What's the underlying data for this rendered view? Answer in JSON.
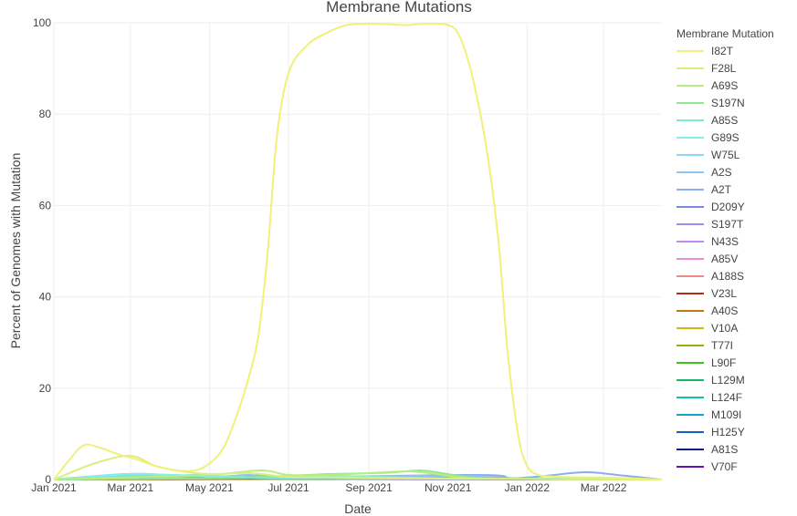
{
  "chart_data": {
    "type": "line",
    "title": "Membrane Mutations",
    "xlabel": "Date",
    "ylabel": "Percent of Genomes with Mutation",
    "xlim": [
      "2021-01-01",
      "2022-04-15"
    ],
    "ylim": [
      0,
      100
    ],
    "x_ticks": [
      "Jan 2021",
      "Mar 2021",
      "May 2021",
      "Jul 2021",
      "Sep 2021",
      "Nov 2021",
      "Jan 2022",
      "Mar 2022"
    ],
    "x_tick_dates": [
      "2021-01-01",
      "2021-03-01",
      "2021-05-01",
      "2021-07-01",
      "2021-09-01",
      "2021-11-01",
      "2022-01-01",
      "2022-03-01"
    ],
    "y_ticks": [
      0,
      20,
      40,
      60,
      80,
      100
    ],
    "grid": true,
    "legend_title": "Membrane Mutation",
    "legend_position": "right",
    "series": [
      {
        "name": "I82T",
        "color": "#f0f07a",
        "points": [
          [
            "2021-01-01",
            0
          ],
          [
            "2021-01-12",
            4
          ],
          [
            "2021-01-24",
            7.5
          ],
          [
            "2021-02-05",
            7
          ],
          [
            "2021-02-20",
            5.5
          ],
          [
            "2021-03-05",
            4.5
          ],
          [
            "2021-03-20",
            3
          ],
          [
            "2021-04-05",
            2
          ],
          [
            "2021-04-20",
            2
          ],
          [
            "2021-05-01",
            3.5
          ],
          [
            "2021-05-12",
            7
          ],
          [
            "2021-05-22",
            14
          ],
          [
            "2021-06-01",
            23
          ],
          [
            "2021-06-08",
            32
          ],
          [
            "2021-06-15",
            50
          ],
          [
            "2021-06-22",
            75
          ],
          [
            "2021-07-01",
            89
          ],
          [
            "2021-07-15",
            95
          ],
          [
            "2021-08-01",
            98
          ],
          [
            "2021-08-15",
            99.5
          ],
          [
            "2021-09-01",
            99.8
          ],
          [
            "2021-09-15",
            99.7
          ],
          [
            "2021-10-01",
            99.5
          ],
          [
            "2021-10-15",
            99.8
          ],
          [
            "2021-11-01",
            99.5
          ],
          [
            "2021-11-10",
            97
          ],
          [
            "2021-11-20",
            88
          ],
          [
            "2021-12-01",
            72
          ],
          [
            "2021-12-10",
            52
          ],
          [
            "2021-12-17",
            28
          ],
          [
            "2021-12-25",
            10
          ],
          [
            "2022-01-01",
            3
          ],
          [
            "2022-01-10",
            1
          ],
          [
            "2022-01-25",
            0.6
          ],
          [
            "2022-02-15",
            0.5
          ],
          [
            "2022-03-10",
            0.4
          ],
          [
            "2022-04-15",
            0
          ]
        ]
      },
      {
        "name": "F28L",
        "color": "#dcef7e",
        "points": [
          [
            "2021-01-01",
            0
          ],
          [
            "2021-02-01",
            3.5
          ],
          [
            "2021-03-01",
            5.2
          ],
          [
            "2021-03-20",
            3
          ],
          [
            "2021-04-10",
            1.8
          ],
          [
            "2021-05-01",
            1.2
          ],
          [
            "2021-06-01",
            1.4
          ],
          [
            "2021-07-01",
            0.6
          ],
          [
            "2021-08-01",
            0.5
          ],
          [
            "2021-09-01",
            0.4
          ],
          [
            "2021-10-01",
            0.3
          ],
          [
            "2021-11-01",
            0.2
          ],
          [
            "2022-01-01",
            0.1
          ],
          [
            "2022-04-15",
            0
          ]
        ]
      },
      {
        "name": "A69S",
        "color": "#b9ec82",
        "points": [
          [
            "2021-01-01",
            0
          ],
          [
            "2021-03-01",
            0.5
          ],
          [
            "2021-05-01",
            1
          ],
          [
            "2021-06-10",
            2
          ],
          [
            "2021-07-01",
            1
          ],
          [
            "2021-08-01",
            1
          ],
          [
            "2021-09-01",
            1.4
          ],
          [
            "2021-10-01",
            1.8
          ],
          [
            "2021-10-20",
            1.3
          ],
          [
            "2021-11-10",
            0.5
          ],
          [
            "2021-12-01",
            0.2
          ],
          [
            "2022-01-01",
            0.1
          ],
          [
            "2022-04-15",
            0
          ]
        ]
      },
      {
        "name": "S197N",
        "color": "#8fe88f",
        "points": [
          [
            "2021-01-01",
            0
          ],
          [
            "2021-05-01",
            0.3
          ],
          [
            "2021-07-01",
            0.8
          ],
          [
            "2021-08-01",
            1.2
          ],
          [
            "2021-09-15",
            1.5
          ],
          [
            "2021-10-10",
            2
          ],
          [
            "2021-10-25",
            1.5
          ],
          [
            "2021-11-15",
            0.6
          ],
          [
            "2021-12-15",
            0.2
          ],
          [
            "2022-04-15",
            0
          ]
        ]
      },
      {
        "name": "A85S",
        "color": "#80eecc",
        "points": [
          [
            "2021-01-01",
            0
          ],
          [
            "2021-03-01",
            0.6
          ],
          [
            "2021-05-01",
            0.3
          ],
          [
            "2021-07-15",
            0.8
          ],
          [
            "2021-09-01",
            0.6
          ],
          [
            "2021-11-01",
            0.3
          ],
          [
            "2022-04-15",
            0
          ]
        ]
      },
      {
        "name": "G89S",
        "color": "#86ecec",
        "points": [
          [
            "2021-01-01",
            0
          ],
          [
            "2021-03-01",
            1.2
          ],
          [
            "2021-04-01",
            1
          ],
          [
            "2021-06-01",
            0.5
          ],
          [
            "2021-08-01",
            0.3
          ],
          [
            "2022-04-15",
            0
          ]
        ]
      },
      {
        "name": "W75L",
        "color": "#8bd8f2",
        "points": [
          [
            "2021-01-01",
            0
          ],
          [
            "2021-02-20",
            1
          ],
          [
            "2021-04-01",
            0.8
          ],
          [
            "2021-05-01",
            1.1
          ],
          [
            "2021-06-01",
            0.4
          ],
          [
            "2022-04-15",
            0
          ]
        ]
      },
      {
        "name": "A2S",
        "color": "#8ec4ef",
        "points": [
          [
            "2021-01-01",
            0
          ],
          [
            "2021-02-25",
            1.2
          ],
          [
            "2021-04-01",
            1
          ],
          [
            "2021-05-10",
            0.7
          ],
          [
            "2021-06-01",
            1
          ],
          [
            "2021-07-01",
            0.6
          ],
          [
            "2021-11-15",
            0.8
          ],
          [
            "2021-12-15",
            0.3
          ],
          [
            "2022-04-15",
            0
          ]
        ]
      },
      {
        "name": "A2T",
        "color": "#8cacee",
        "points": [
          [
            "2021-01-01",
            0
          ],
          [
            "2021-05-15",
            0.4
          ],
          [
            "2021-06-10",
            1.1
          ],
          [
            "2021-07-01",
            0.5
          ],
          [
            "2021-11-25",
            1
          ],
          [
            "2021-12-20",
            0.3
          ],
          [
            "2022-01-15",
            0.8
          ],
          [
            "2022-02-15",
            1.6
          ],
          [
            "2022-03-15",
            0.9
          ],
          [
            "2022-04-15",
            0
          ]
        ]
      },
      {
        "name": "D209Y",
        "color": "#7f86e0",
        "points": [
          [
            "2021-01-01",
            0
          ],
          [
            "2021-02-15",
            0.5
          ],
          [
            "2021-03-15",
            0.3
          ],
          [
            "2021-06-01",
            0.5
          ],
          [
            "2021-08-01",
            0.2
          ],
          [
            "2022-04-15",
            0
          ]
        ]
      },
      {
        "name": "S197T",
        "color": "#9d8cf2",
        "points": [
          [
            "2021-01-01",
            0
          ],
          [
            "2021-03-01",
            0.7
          ],
          [
            "2021-04-15",
            0.4
          ],
          [
            "2021-07-01",
            0.5
          ],
          [
            "2021-11-20",
            0.6
          ],
          [
            "2022-01-01",
            0.1
          ],
          [
            "2022-04-15",
            0
          ]
        ]
      },
      {
        "name": "N43S",
        "color": "#c48af0",
        "points": [
          [
            "2021-01-01",
            0
          ],
          [
            "2021-04-01",
            0.4
          ],
          [
            "2021-05-01",
            0.9
          ],
          [
            "2021-06-01",
            0.3
          ],
          [
            "2022-04-15",
            0
          ]
        ]
      },
      {
        "name": "A85V",
        "color": "#f08ad6",
        "points": [
          [
            "2021-01-01",
            0
          ],
          [
            "2021-05-20",
            0.5
          ],
          [
            "2021-07-01",
            0.2
          ],
          [
            "2022-04-15",
            0
          ]
        ]
      },
      {
        "name": "A188S",
        "color": "#ef8a8a",
        "points": [
          [
            "2021-01-01",
            0
          ],
          [
            "2021-08-15",
            0.4
          ],
          [
            "2021-09-15",
            0.2
          ],
          [
            "2022-04-15",
            0
          ]
        ]
      },
      {
        "name": "V23L",
        "color": "#b52a14",
        "points": [
          [
            "2021-01-01",
            0
          ],
          [
            "2021-09-01",
            0.3
          ],
          [
            "2021-10-01",
            0.1
          ],
          [
            "2022-04-15",
            0
          ]
        ]
      },
      {
        "name": "A40S",
        "color": "#c07a12",
        "points": [
          [
            "2021-01-01",
            0
          ],
          [
            "2021-09-20",
            0.3
          ],
          [
            "2021-10-15",
            0.9
          ],
          [
            "2021-11-01",
            0.3
          ],
          [
            "2022-04-15",
            0
          ]
        ]
      },
      {
        "name": "V10A",
        "color": "#c9b80e",
        "points": [
          [
            "2021-01-01",
            0
          ],
          [
            "2021-10-01",
            0.2
          ],
          [
            "2022-04-15",
            0
          ]
        ]
      },
      {
        "name": "T77I",
        "color": "#8fb10c",
        "points": [
          [
            "2021-01-01",
            0
          ],
          [
            "2021-07-15",
            0.2
          ],
          [
            "2022-04-15",
            0
          ]
        ]
      },
      {
        "name": "L90F",
        "color": "#3cc41e",
        "points": [
          [
            "2021-01-01",
            0
          ],
          [
            "2021-08-01",
            0.2
          ],
          [
            "2022-04-15",
            0
          ]
        ]
      },
      {
        "name": "L129M",
        "color": "#17b76a",
        "points": [
          [
            "2021-01-01",
            0
          ],
          [
            "2021-06-15",
            0.2
          ],
          [
            "2022-04-15",
            0
          ]
        ]
      },
      {
        "name": "L124F",
        "color": "#10c0a8",
        "points": [
          [
            "2021-01-01",
            0
          ],
          [
            "2021-04-15",
            0.2
          ],
          [
            "2022-04-15",
            0
          ]
        ]
      },
      {
        "name": "M109I",
        "color": "#14a6c8",
        "points": [
          [
            "2021-01-01",
            0
          ],
          [
            "2021-12-01",
            0.2
          ],
          [
            "2022-04-15",
            0
          ]
        ]
      },
      {
        "name": "H125Y",
        "color": "#1560c0",
        "points": [
          [
            "2021-01-01",
            0
          ],
          [
            "2021-03-01",
            0.3
          ],
          [
            "2021-11-10",
            0.3
          ],
          [
            "2021-12-15",
            0.1
          ],
          [
            "2022-04-15",
            0
          ]
        ]
      },
      {
        "name": "A81S",
        "color": "#0d1e8a",
        "points": [
          [
            "2021-01-01",
            0
          ],
          [
            "2021-03-01",
            0.6
          ],
          [
            "2021-04-01",
            0.2
          ],
          [
            "2022-04-15",
            0
          ]
        ]
      },
      {
        "name": "V70F",
        "color": "#6a0fb5",
        "points": [
          [
            "2021-01-01",
            0
          ],
          [
            "2021-02-20",
            0.5
          ],
          [
            "2021-03-20",
            0.8
          ],
          [
            "2021-04-15",
            0.3
          ],
          [
            "2022-04-15",
            0
          ]
        ]
      }
    ]
  }
}
